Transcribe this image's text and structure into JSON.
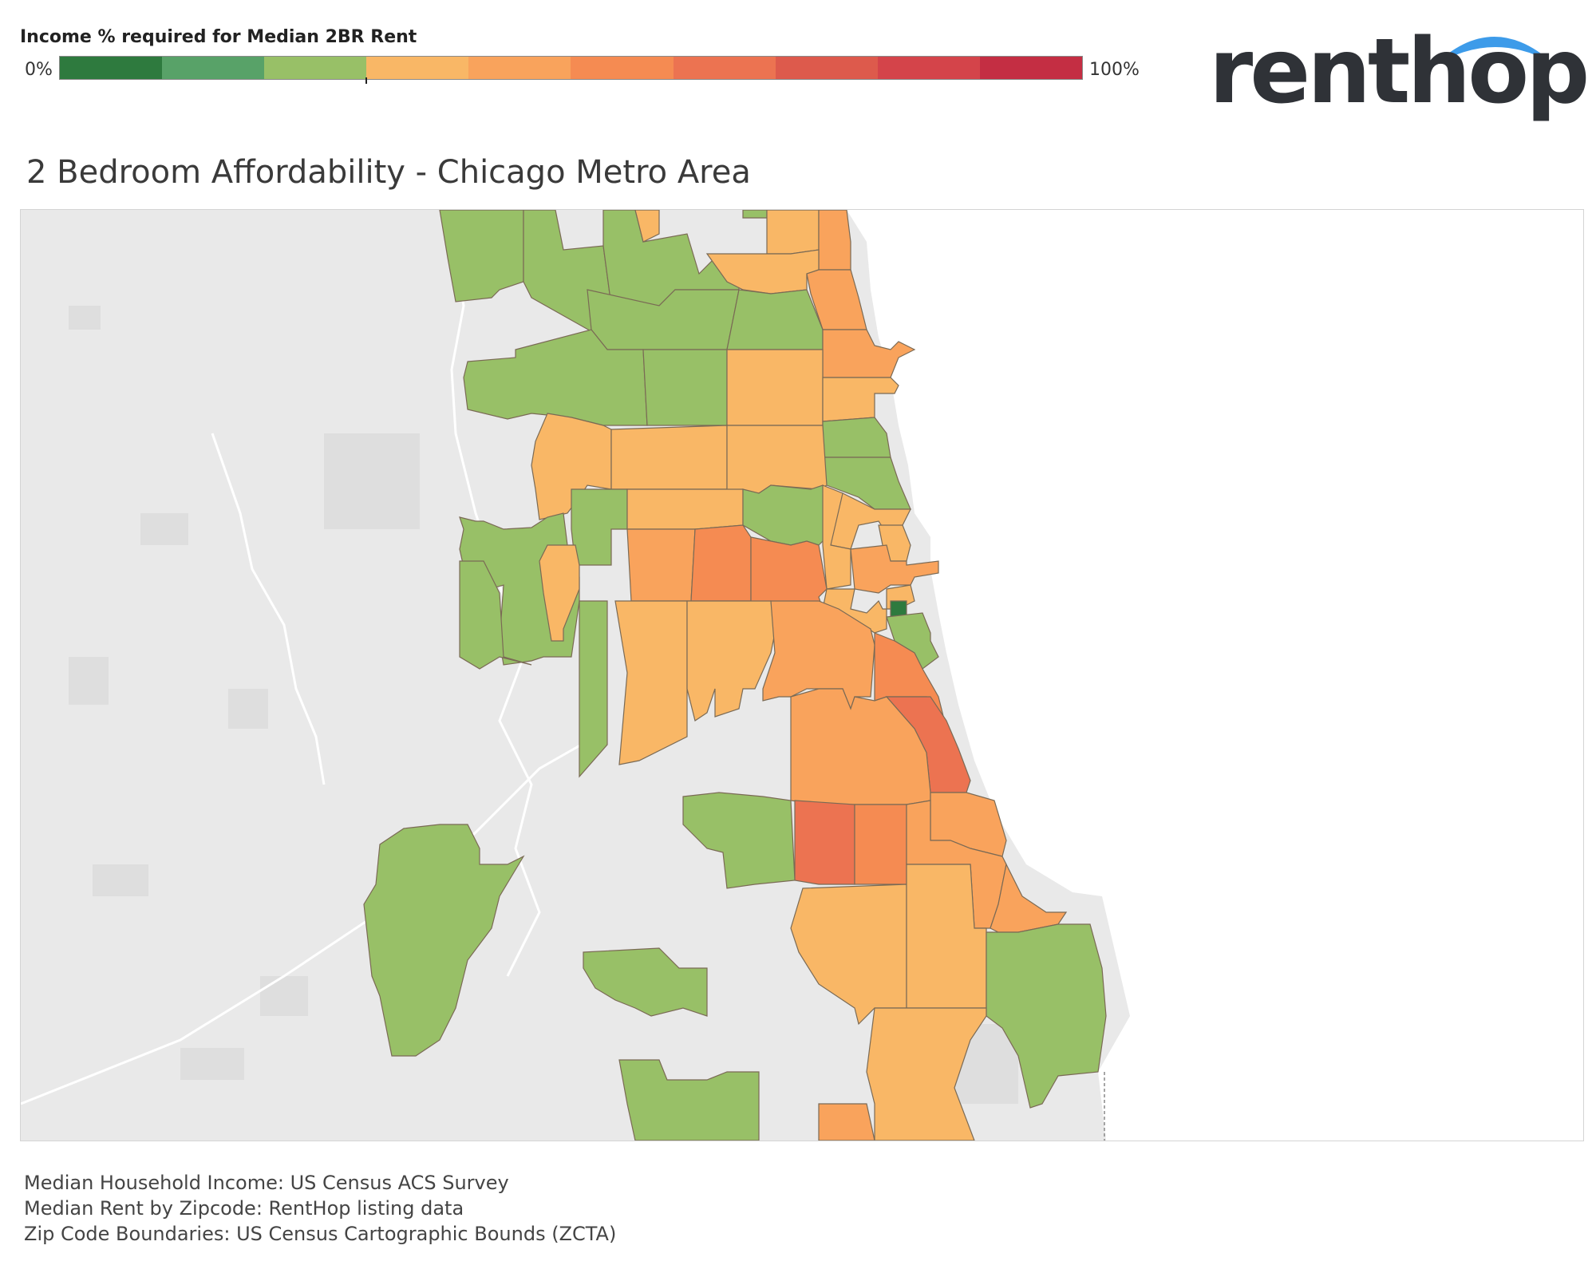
{
  "legend": {
    "title": "Income % required for Median 2BR Rent",
    "min_label": "0%",
    "max_label": "100%",
    "colors": [
      "#2e7a3e",
      "#58a268",
      "#98c067",
      "#f9b766",
      "#f9a35c",
      "#f58b52",
      "#ec7351",
      "#dd5a4c",
      "#d4444a",
      "#c42e43"
    ]
  },
  "logo": {
    "text": "renthop",
    "accent_color": "#3d9be9",
    "text_color": "#2f3237"
  },
  "map": {
    "title": "2 Bedroom Affordability - Chicago Metro Area",
    "background_color": "#e9e9e9",
    "water_color": "#ffffff"
  },
  "sources": [
    "Median Household Income: US Census ACS Survey",
    "Median Rent by Zipcode: RentHop listing data",
    "Zip Code Boundaries: US Census Cartographic Bounds (ZCTA)"
  ]
}
